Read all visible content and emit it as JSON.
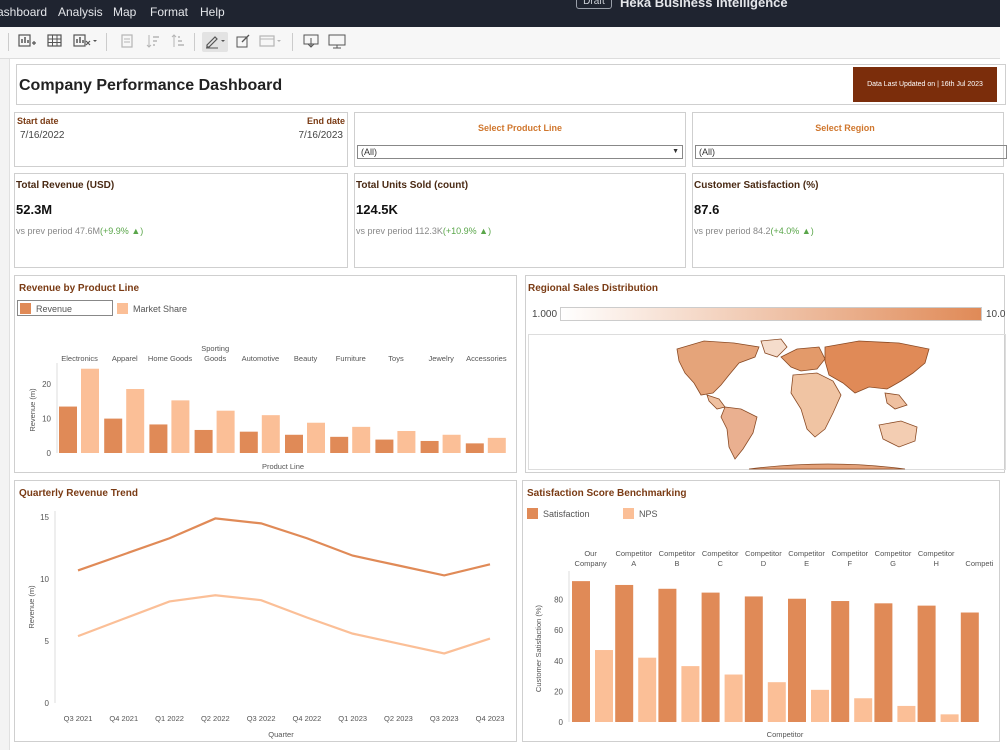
{
  "menu": {
    "items": [
      "ashboard",
      "Analysis",
      "Map",
      "Format",
      "Help"
    ]
  },
  "app": {
    "badge": "Draft",
    "title": "Heka Business Intelligence"
  },
  "colors": {
    "revenue": "#e08a57",
    "share": "#fbbf97",
    "accent": "#d0772e",
    "title_brown": "#7a3b14",
    "update_bg": "#7b2d0b",
    "delta_green": "#5aa64a"
  },
  "toolbar": {
    "icons": [
      "add-chart-icon",
      "add-table-icon",
      "remove-chart-icon",
      "sort-icon",
      "sort-ascending-icon",
      "sort-descending-icon",
      "pen-icon",
      "edit-icon",
      "layout-icon",
      "download-icon",
      "present-icon"
    ]
  },
  "dashboard": {
    "title": "Company Performance Dashboard",
    "updated": "Data Last Updated on | 16th Jul 2023"
  },
  "filters": {
    "start_label": "Start date",
    "start_value": "7/16/2022",
    "end_label": "End date",
    "end_value": "7/16/2023",
    "product_label": "Select Product Line",
    "product_value": "(All)",
    "region_label": "Select Region",
    "region_value": "(All)"
  },
  "kpis": [
    {
      "title": "Total Revenue (USD)",
      "value": "52.3M",
      "prev": "vs prev period 47.6M",
      "delta": "(+9.9% ▲)"
    },
    {
      "title": "Total Units Sold (count)",
      "value": "124.5K",
      "prev": "vs prev period 112.3K",
      "delta": "(+10.9% ▲)"
    },
    {
      "title": "Customer Satisfaction (%)",
      "value": "87.6",
      "prev": "vs prev period 84.2",
      "delta": "(+4.0% ▲)"
    }
  ],
  "map_panel": {
    "title": "Regional Sales Distribution",
    "scale_min": "1.000",
    "scale_max": "10.0"
  },
  "chart_data": [
    {
      "type": "bar",
      "title": "Revenue by Product Line",
      "categories": [
        "Electronics",
        "Apparel",
        "Home Goods",
        "Sporting Goods",
        "Automotive",
        "Beauty",
        "Furniture",
        "Toys",
        "Jewelry",
        "Accessories"
      ],
      "series": [
        {
          "name": "Revenue",
          "values": [
            13.5,
            10,
            8.3,
            6.7,
            6.2,
            5.3,
            4.7,
            3.9,
            3.5,
            2.8
          ]
        },
        {
          "name": "Market Share",
          "values": [
            24.5,
            18.6,
            15.3,
            12.3,
            11,
            8.8,
            7.6,
            6.4,
            5.3,
            4.4
          ]
        }
      ],
      "xlabel": "Product Line",
      "ylabel": "Revenue (m)",
      "yticks": [
        0,
        10,
        20
      ],
      "ylim": [
        0,
        25
      ],
      "legend": "top-left"
    },
    {
      "type": "line",
      "title": "Quarterly Revenue Trend",
      "categories": [
        "Q3 2021",
        "Q4 2021",
        "Q1 2022",
        "Q2 2022",
        "Q3 2022",
        "Q4 2022",
        "Q1 2023",
        "Q2 2023",
        "Q3 2023",
        "Q4 2023"
      ],
      "series": [
        {
          "values": [
            10.7,
            12,
            13.3,
            14.9,
            14.5,
            13.3,
            11.9,
            11.1,
            10.3,
            11.2
          ]
        },
        {
          "values": [
            5.4,
            6.8,
            8.2,
            8.7,
            8.3,
            6.9,
            5.6,
            4.8,
            4,
            5.2
          ]
        }
      ],
      "xlabel": "Quarter",
      "ylabel": "Revenue (m)",
      "yticks": [
        0,
        5,
        10,
        15
      ],
      "ylim": [
        0,
        15.5
      ],
      "grid": false
    },
    {
      "type": "bar",
      "title": "Satisfaction Score Benchmarking",
      "categories": [
        "Our Company",
        "Competitor A",
        "Competitor B",
        "Competitor C",
        "Competitor D",
        "Competitor E",
        "Competitor F",
        "Competitor G",
        "Competitor H",
        "Competi"
      ],
      "series": [
        {
          "name": "Satisfaction",
          "values": [
            92,
            89.5,
            87,
            84.5,
            82,
            80.5,
            79,
            77.5,
            76,
            71.5
          ]
        },
        {
          "name": "NPS",
          "values": [
            47,
            42,
            36.5,
            31,
            26,
            21,
            15.5,
            10.5,
            5,
            0
          ]
        }
      ],
      "xlabel": "Competitor",
      "ylabel": "Customer Satisfaction (%)",
      "yticks": [
        0,
        20,
        40,
        60,
        80
      ],
      "ylim": [
        0,
        96
      ],
      "legend": "top-left"
    }
  ]
}
